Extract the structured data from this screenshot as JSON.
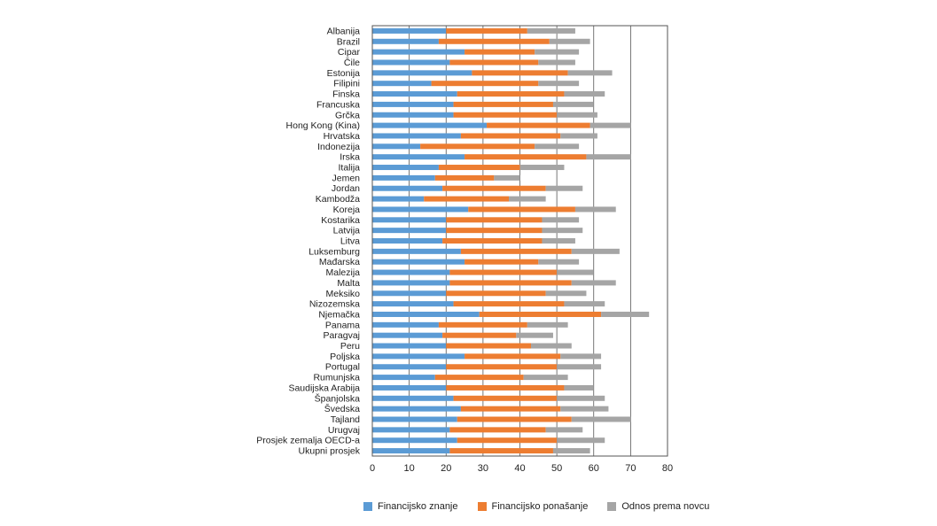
{
  "chart_data": {
    "type": "bar",
    "orientation": "horizontal",
    "stacked": true,
    "categories": [
      "Albanija",
      "Brazil",
      "Cipar",
      "Čile",
      "Estonija",
      "Filipini",
      "Finska",
      "Francuska",
      "Grčka",
      "Hong Kong (Kina)",
      "Hrvatska",
      "Indonezija",
      "Irska",
      "Italija",
      "Jemen",
      "Jordan",
      "Kambodža",
      "Koreja",
      "Kostarika",
      "Latvija",
      "Litva",
      "Luksemburg",
      "Mađarska",
      "Malezija",
      "Malta",
      "Meksiko",
      "Nizozemska",
      "Njemačka",
      "Panama",
      "Paragvaj",
      "Peru",
      "Poljska",
      "Portugal",
      "Rumunjska",
      "Saudijska Arabija",
      "Španjolska",
      "Švedska",
      "Tajland",
      "Urugvaj",
      "Prosjek zemalja OECD-a",
      "Ukupni prosjek"
    ],
    "series": [
      {
        "name": "Financijsko znanje",
        "color": "#5b9bd5",
        "values": [
          20,
          18,
          25,
          21,
          27,
          16,
          23,
          22,
          22,
          31,
          24,
          13,
          25,
          18,
          17,
          19,
          14,
          26,
          20,
          20,
          19,
          24,
          25,
          21,
          21,
          20,
          22,
          29,
          18,
          19,
          20,
          25,
          20,
          17,
          20,
          22,
          24,
          23,
          21,
          23,
          21
        ]
      },
      {
        "name": "Financijsko ponašanje",
        "color": "#ed7d31",
        "values": [
          22,
          30,
          19,
          24,
          26,
          29,
          29,
          27,
          28,
          28,
          27,
          31,
          33,
          22,
          16,
          28,
          23,
          29,
          26,
          26,
          27,
          30,
          20,
          29,
          33,
          27,
          30,
          33,
          24,
          20,
          23,
          26,
          30,
          24,
          32,
          28,
          27,
          31,
          26,
          27,
          28
        ]
      },
      {
        "name": "Odnos prema novcu",
        "color": "#a5a5a5",
        "values": [
          13,
          11,
          12,
          10,
          12,
          11,
          11,
          11,
          11,
          11,
          10,
          12,
          12,
          12,
          7,
          10,
          10,
          11,
          10,
          11,
          9,
          13,
          11,
          10,
          12,
          11,
          11,
          13,
          11,
          10,
          11,
          11,
          12,
          12,
          8,
          13,
          13,
          16,
          10,
          13,
          10
        ]
      }
    ],
    "xlim": [
      0,
      80
    ],
    "xticks": [
      0,
      10,
      20,
      30,
      40,
      50,
      60,
      70,
      80
    ],
    "grid": true,
    "legend_position": "bottom"
  }
}
